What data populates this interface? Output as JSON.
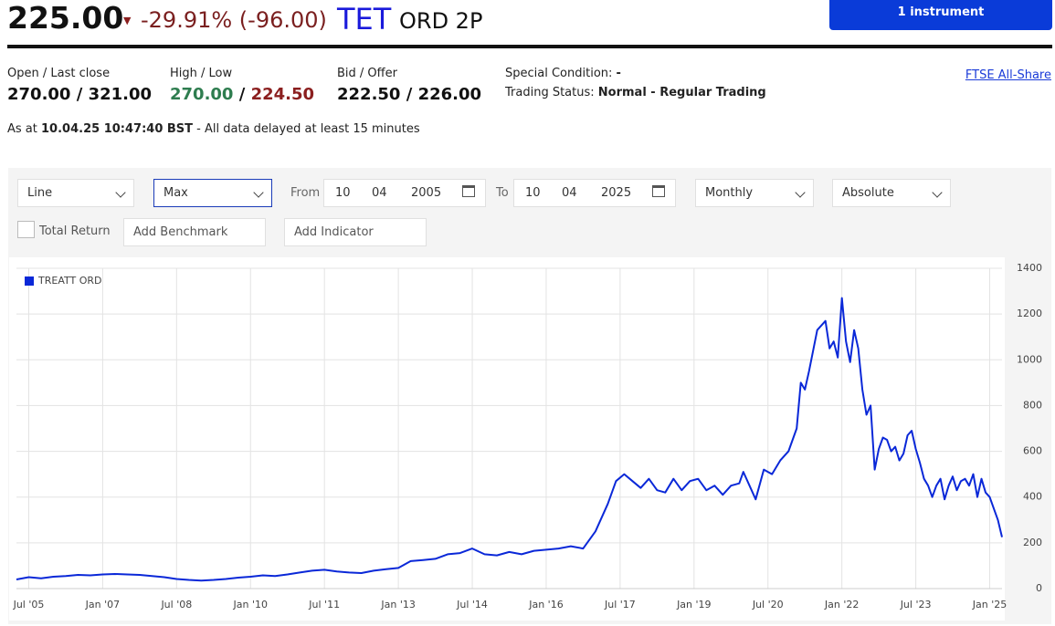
{
  "header": {
    "price": "225.00",
    "change": "-29.91% (-96.00)",
    "ticker": "TET",
    "name": "ORD 2P",
    "button": "1 instrument"
  },
  "stats": [
    {
      "label": "Open / Last close",
      "value": "270.00 / 321.00"
    },
    {
      "label": "High / Low",
      "high": "270.00",
      "separator": "/",
      "low": "224.50"
    },
    {
      "label": "Bid / Offer",
      "value": "222.50 / 226.00"
    }
  ],
  "special_condition": {
    "label": "Special Condition:",
    "value": "-"
  },
  "trading_status": {
    "label": "Trading Status:",
    "value": "Normal - Regular Trading"
  },
  "index_link": "FTSE All-Share",
  "timestamp": {
    "prefix": "As at",
    "time": "10.04.25 10:47:40 BST",
    "suffix": "- All data delayed at least 15 minutes"
  },
  "controls": {
    "chart_type": "Line",
    "range": "Max",
    "from_label": "From",
    "from": [
      "10",
      "04",
      "2005"
    ],
    "to_label": "To",
    "to": [
      "10",
      "04",
      "2025"
    ],
    "interval": "Monthly",
    "mode": "Absolute",
    "total_return": "Total Return",
    "benchmark": "Add Benchmark",
    "indicator": "Add Indicator"
  },
  "chart_data": {
    "type": "line",
    "x": [
      "2005-04",
      "2005-07",
      "2005-10",
      "2006-01",
      "2006-04",
      "2006-07",
      "2006-10",
      "2007-01",
      "2007-04",
      "2007-07",
      "2007-10",
      "2008-01",
      "2008-04",
      "2008-07",
      "2008-10",
      "2009-01",
      "2009-04",
      "2009-07",
      "2009-10",
      "2010-01",
      "2010-04",
      "2010-07",
      "2010-10",
      "2011-01",
      "2011-04",
      "2011-07",
      "2011-10",
      "2012-01",
      "2012-04",
      "2012-07",
      "2012-10",
      "2013-01",
      "2013-04",
      "2013-07",
      "2013-10",
      "2014-01",
      "2014-04",
      "2014-07",
      "2014-10",
      "2015-01",
      "2015-04",
      "2015-07",
      "2015-10",
      "2016-01",
      "2016-04",
      "2016-07",
      "2016-10",
      "2017-01",
      "2017-04",
      "2017-06",
      "2017-08",
      "2017-10",
      "2017-12",
      "2018-02",
      "2018-04",
      "2018-06",
      "2018-08",
      "2018-10",
      "2018-12",
      "2019-02",
      "2019-04",
      "2019-06",
      "2019-08",
      "2019-10",
      "2019-12",
      "2020-01",
      "2020-04",
      "2020-06",
      "2020-08",
      "2020-10",
      "2020-12",
      "2021-02",
      "2021-03",
      "2021-04",
      "2021-05",
      "2021-07",
      "2021-09",
      "2021-10",
      "2021-11",
      "2021-12",
      "2022-01",
      "2022-02",
      "2022-03",
      "2022-04",
      "2022-05",
      "2022-06",
      "2022-07",
      "2022-08",
      "2022-09",
      "2022-10",
      "2022-11",
      "2022-12",
      "2023-01",
      "2023-02",
      "2023-03",
      "2023-04",
      "2023-05",
      "2023-06",
      "2023-07",
      "2023-08",
      "2023-09",
      "2023-10",
      "2023-11",
      "2023-12",
      "2024-01",
      "2024-02",
      "2024-03",
      "2024-04",
      "2024-05",
      "2024-06",
      "2024-07",
      "2024-08",
      "2024-09",
      "2024-10",
      "2024-11",
      "2024-12",
      "2025-01",
      "2025-02",
      "2025-03",
      "2025-04"
    ],
    "series": [
      {
        "name": "TREATT ORD",
        "color": "#0a28d8",
        "values": [
          40,
          50,
          45,
          52,
          55,
          60,
          58,
          62,
          64,
          62,
          60,
          55,
          50,
          42,
          38,
          35,
          38,
          42,
          48,
          52,
          58,
          55,
          62,
          70,
          78,
          82,
          75,
          70,
          68,
          78,
          85,
          90,
          120,
          125,
          130,
          150,
          155,
          175,
          150,
          145,
          160,
          150,
          165,
          170,
          175,
          185,
          175,
          250,
          370,
          470,
          500,
          470,
          440,
          480,
          430,
          420,
          480,
          430,
          470,
          480,
          430,
          450,
          410,
          450,
          460,
          510,
          390,
          520,
          500,
          560,
          600,
          700,
          900,
          870,
          950,
          1130,
          1170,
          1050,
          1080,
          1010,
          1270,
          1080,
          990,
          1130,
          1050,
          870,
          760,
          800,
          520,
          610,
          660,
          650,
          600,
          620,
          560,
          590,
          670,
          690,
          610,
          550,
          480,
          450,
          400,
          450,
          480,
          390,
          450,
          490,
          430,
          470,
          480,
          450,
          500,
          400,
          480,
          420,
          400,
          350,
          300,
          225
        ]
      }
    ],
    "xlim": [
      "2005-04",
      "2025-04"
    ],
    "xticks": [
      {
        "value": "2005-07",
        "label": "Jul '05"
      },
      {
        "value": "2007-01",
        "label": "Jan '07"
      },
      {
        "value": "2008-07",
        "label": "Jul '08"
      },
      {
        "value": "2010-01",
        "label": "Jan '10"
      },
      {
        "value": "2011-07",
        "label": "Jul '11"
      },
      {
        "value": "2013-01",
        "label": "Jan '13"
      },
      {
        "value": "2014-07",
        "label": "Jul '14"
      },
      {
        "value": "2016-01",
        "label": "Jan '16"
      },
      {
        "value": "2017-07",
        "label": "Jul '17"
      },
      {
        "value": "2019-01",
        "label": "Jan '19"
      },
      {
        "value": "2020-07",
        "label": "Jul '20"
      },
      {
        "value": "2022-01",
        "label": "Jan '22"
      },
      {
        "value": "2023-07",
        "label": "Jul '23"
      },
      {
        "value": "2025-01",
        "label": "Jan '25"
      }
    ],
    "ylim": [
      0,
      1400
    ],
    "yticks": [
      0,
      200,
      400,
      600,
      800,
      1000,
      1200,
      1400
    ],
    "grid": true,
    "legend": "top-left"
  }
}
